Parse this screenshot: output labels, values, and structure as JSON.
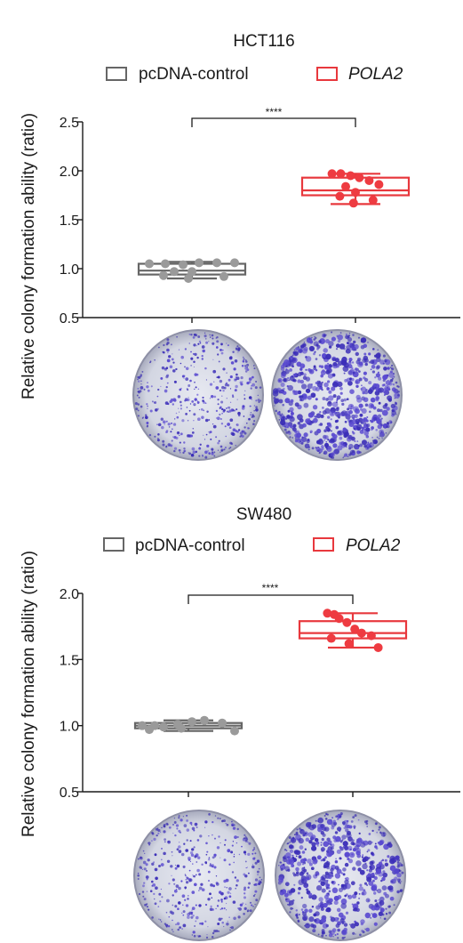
{
  "chart_data": [
    {
      "type": "box",
      "title": "HCT116",
      "ylabel": "Relative colony formation ability (ratio)",
      "ylim": [
        0.5,
        2.5
      ],
      "yticks": [
        "0.5",
        "1.0",
        "1.5",
        "2.0",
        "2.5"
      ],
      "ytick_values": [
        0.5,
        1.0,
        1.5,
        2.0,
        2.5
      ],
      "grid": false,
      "legend_position": "top",
      "significance": "****",
      "series": [
        {
          "name": "pcDNA-control",
          "italic": false,
          "color": "#666666",
          "box": {
            "whisker_low": 0.9,
            "q1": 0.94,
            "median": 0.98,
            "q3": 1.05,
            "whisker_high": 1.07
          },
          "points": [
            1.05,
            1.05,
            1.04,
            1.06,
            1.06,
            1.06,
            0.97,
            0.97,
            0.93,
            0.92,
            0.9
          ]
        },
        {
          "name": "POLA2",
          "italic": true,
          "color": "#e8383d",
          "box": {
            "whisker_low": 1.66,
            "q1": 1.75,
            "median": 1.8,
            "q3": 1.93,
            "whisker_high": 1.97
          },
          "points": [
            1.97,
            1.97,
            1.95,
            1.93,
            1.9,
            1.86,
            1.84,
            1.78,
            1.74,
            1.7,
            1.67
          ]
        }
      ]
    },
    {
      "type": "box",
      "title": "SW480",
      "ylabel": "Relative colony formation ability (ratio)",
      "ylim": [
        0.5,
        2.0
      ],
      "yticks": [
        "0.5",
        "1.0",
        "1.5",
        "2.0"
      ],
      "ytick_values": [
        0.5,
        1.0,
        1.5,
        2.0
      ],
      "grid": false,
      "legend_position": "top",
      "significance": "****",
      "series": [
        {
          "name": "pcDNA-control",
          "italic": false,
          "color": "#666666",
          "box": {
            "whisker_low": 0.96,
            "q1": 0.98,
            "median": 1.0,
            "q3": 1.02,
            "whisker_high": 1.04
          },
          "points": [
            1.0,
            1.0,
            0.99,
            1.01,
            1.03,
            1.04,
            1.02,
            0.97,
            0.98,
            0.96
          ]
        },
        {
          "name": "POLA2",
          "italic": true,
          "color": "#e8383d",
          "box": {
            "whisker_low": 1.59,
            "q1": 1.66,
            "median": 1.7,
            "q3": 1.79,
            "whisker_high": 1.85
          },
          "points": [
            1.85,
            1.84,
            1.81,
            1.78,
            1.73,
            1.7,
            1.68,
            1.66,
            1.62,
            1.59
          ]
        }
      ]
    }
  ],
  "images": [
    {
      "name": "HCT116 pcDNA-control colony plate",
      "density": 380
    },
    {
      "name": "HCT116 POLA2 colony plate",
      "density": 620
    },
    {
      "name": "SW480 pcDNA-control colony plate",
      "density": 330
    },
    {
      "name": "SW480 POLA2 colony plate",
      "density": 520
    }
  ]
}
